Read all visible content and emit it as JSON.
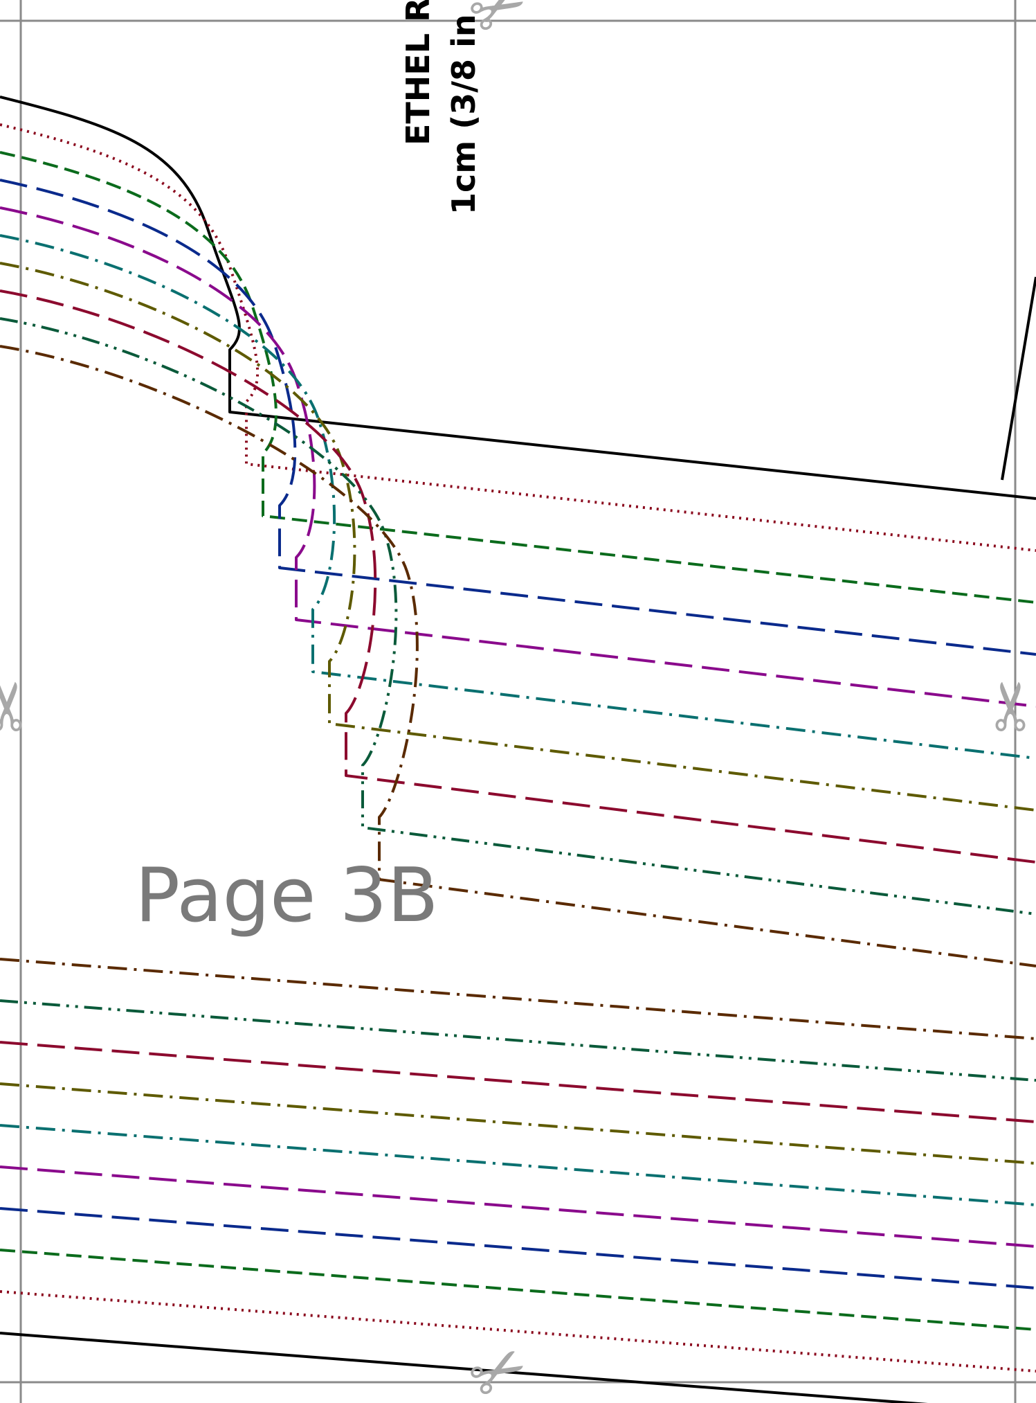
{
  "page_label": "Page 3B",
  "piece_title": {
    "line1": "ETHEL RU",
    "line2": "1cm (3/8 in"
  },
  "cut_mark_icon": "scissors-icon",
  "size_lines": [
    {
      "color": "#000000",
      "dash": "solid"
    },
    {
      "color": "#8b0a1e",
      "dash": "dotted"
    },
    {
      "color": "#0b6b1c",
      "dash": "dashed"
    },
    {
      "color": "#0a2a8c",
      "dash": "long-dash"
    },
    {
      "color": "#8a0a8c",
      "dash": "long-dash"
    },
    {
      "color": "#0a7070",
      "dash": "dash-dot"
    },
    {
      "color": "#5e5a00",
      "dash": "dash-dot"
    },
    {
      "color": "#8c0a2e",
      "dash": "long-dash"
    },
    {
      "color": "#0a5a3a",
      "dash": "dash-dot-dot"
    },
    {
      "color": "#5a2a00",
      "dash": "dash-dot"
    }
  ]
}
